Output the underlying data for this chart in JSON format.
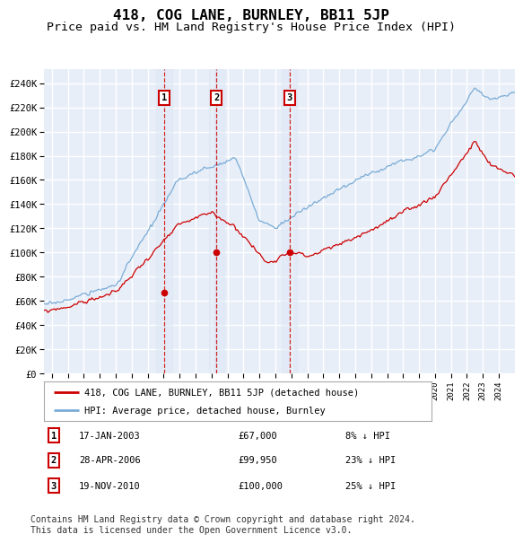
{
  "title": "418, COG LANE, BURNLEY, BB11 5JP",
  "subtitle": "Price paid vs. HM Land Registry's House Price Index (HPI)",
  "legend_property": "418, COG LANE, BURNLEY, BB11 5JP (detached house)",
  "legend_hpi": "HPI: Average price, detached house, Burnley",
  "transactions": [
    {
      "num": 1,
      "date": "17-JAN-2003",
      "date_x": 2003.04,
      "price": 67000,
      "dot_y": 67000,
      "pct": "8% ↓ HPI"
    },
    {
      "num": 2,
      "date": "28-APR-2006",
      "date_x": 2006.32,
      "price": 99950,
      "dot_y": 99950,
      "pct": "23% ↓ HPI"
    },
    {
      "num": 3,
      "date": "19-NOV-2010",
      "date_x": 2010.88,
      "price": 100000,
      "dot_y": 100000,
      "pct": "25% ↓ HPI"
    }
  ],
  "y_ticks": [
    0,
    20000,
    40000,
    60000,
    80000,
    100000,
    120000,
    140000,
    160000,
    180000,
    200000,
    220000,
    240000
  ],
  "y_tick_labels": [
    "£0",
    "£20K",
    "£40K",
    "£60K",
    "£80K",
    "£100K",
    "£120K",
    "£140K",
    "£160K",
    "£180K",
    "£200K",
    "£220K",
    "£240K"
  ],
  "x_min": 1995.5,
  "x_max": 2025.0,
  "y_min": 0,
  "y_max": 252000,
  "hpi_color": "#7aacd6",
  "property_color": "#cc0000",
  "background_color": "#e8eef8",
  "grid_color": "#ffffff",
  "copyright_text": "Contains HM Land Registry data © Crown copyright and database right 2024.\nThis data is licensed under the Open Government Licence v3.0.",
  "footnote_fontsize": 7.0,
  "title_fontsize": 11.5,
  "subtitle_fontsize": 9.5
}
